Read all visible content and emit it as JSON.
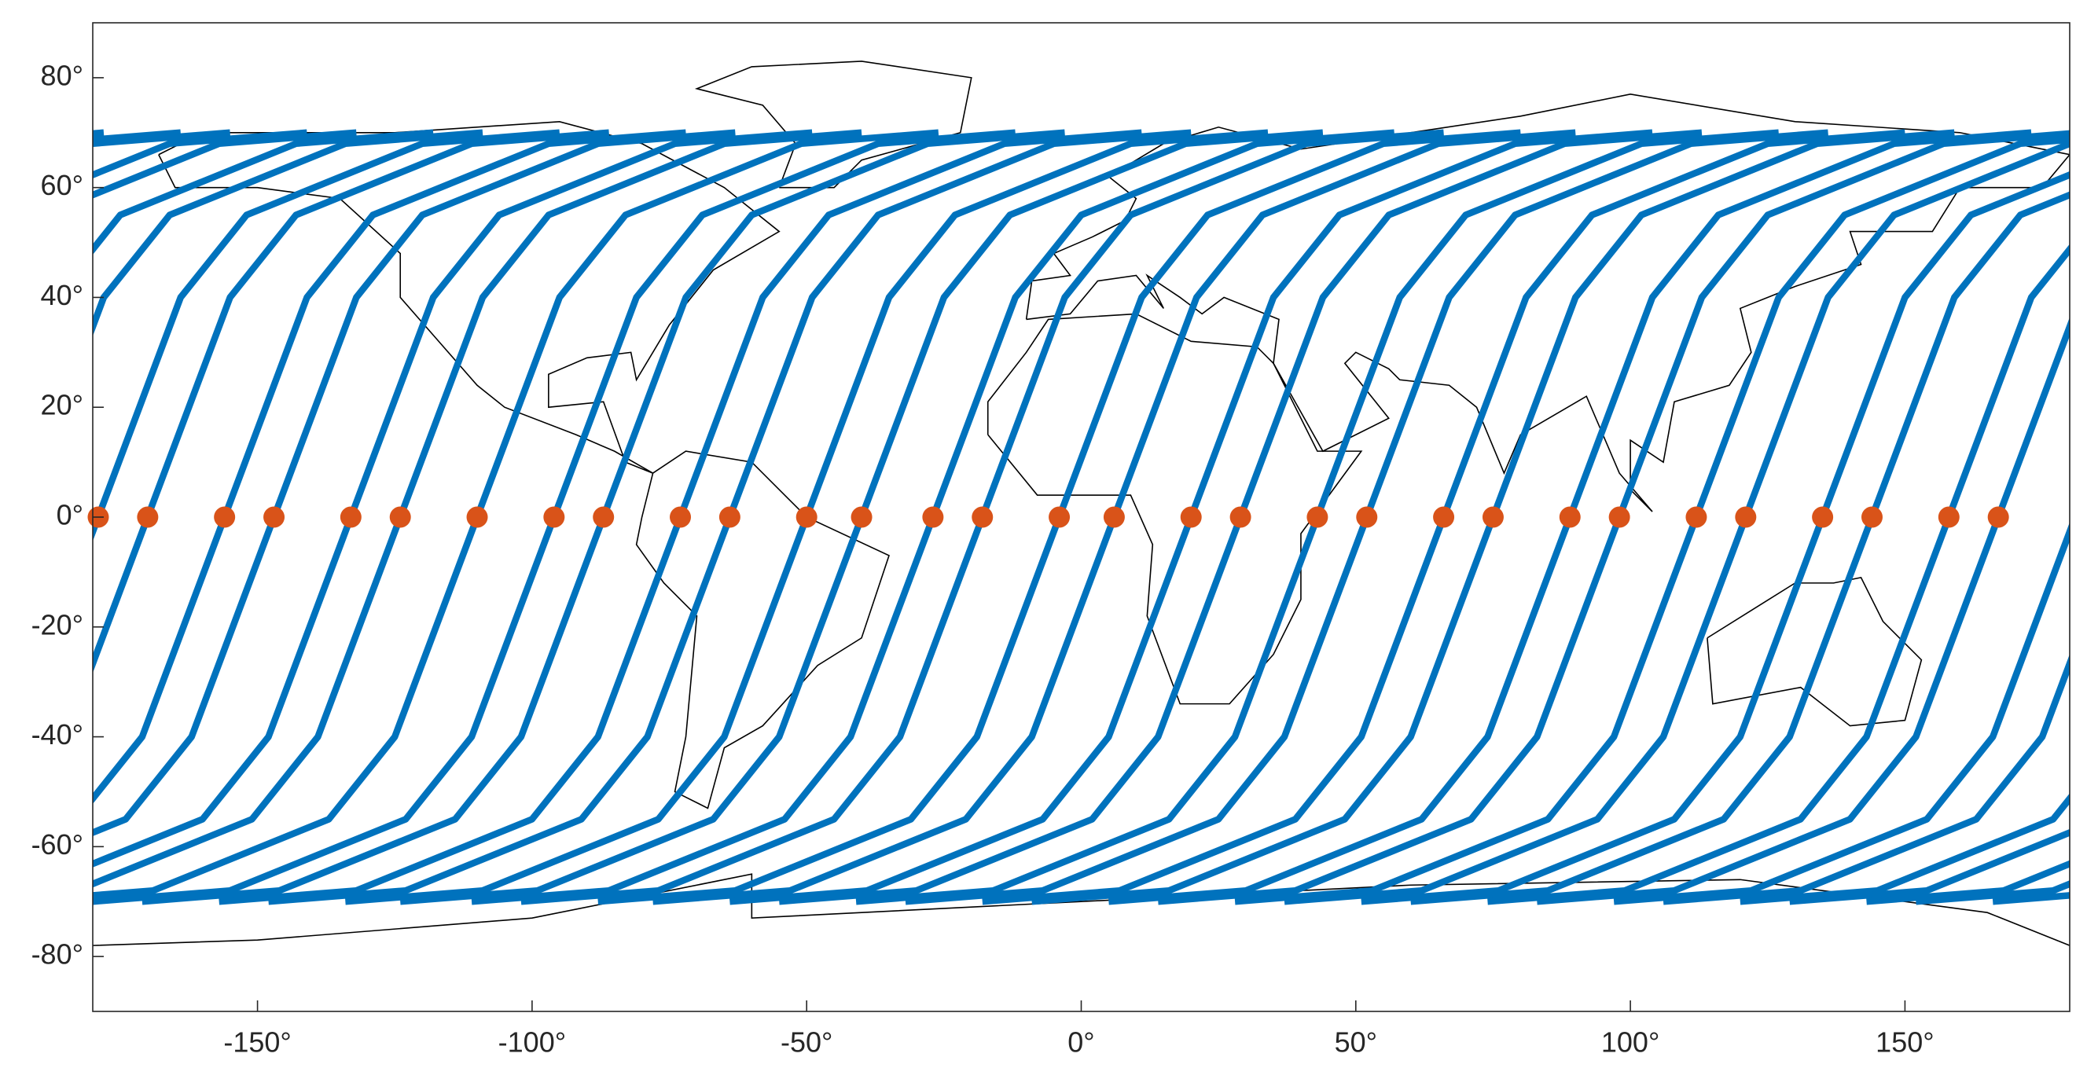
{
  "chart_data": {
    "type": "map",
    "xlim": [
      -180,
      180
    ],
    "ylim": [
      -90,
      90
    ],
    "xticks": [
      {
        "value": -150,
        "label": "-150°"
      },
      {
        "value": -100,
        "label": "-100°"
      },
      {
        "value": -50,
        "label": "-50°"
      },
      {
        "value": 0,
        "label": "0°"
      },
      {
        "value": 50,
        "label": "50°"
      },
      {
        "value": 100,
        "label": "100°"
      },
      {
        "value": 150,
        "label": "150°"
      }
    ],
    "yticks": [
      {
        "value": -80,
        "label": "-80°"
      },
      {
        "value": -60,
        "label": "-60°"
      },
      {
        "value": -40,
        "label": "-40°"
      },
      {
        "value": -20,
        "label": "-20°"
      },
      {
        "value": 0,
        "label": "0°"
      },
      {
        "value": 20,
        "label": "20°"
      },
      {
        "value": 40,
        "label": "40°"
      },
      {
        "value": 60,
        "label": "60°"
      },
      {
        "value": 80,
        "label": "80°"
      }
    ],
    "tracks": {
      "color": "#0072bd",
      "lat": [
        -70,
        -68,
        -55,
        -40,
        0,
        40,
        55,
        68,
        70
      ],
      "series": [
        {
          "lon": [
            97,
            122,
            154,
            166,
            -179,
            -164,
            -152,
            -120,
            -95
          ]
        },
        {
          "lon": [
            106,
            131,
            163,
            175,
            -170,
            -155,
            -143,
            -111,
            -86
          ]
        },
        {
          "lon": [
            120,
            145,
            177,
            -171,
            -156,
            -141,
            -129,
            -97,
            -72
          ]
        },
        {
          "lon": [
            129,
            154,
            -174,
            -162,
            -147,
            -132,
            -120,
            -88,
            -63
          ]
        },
        {
          "lon": [
            143,
            168,
            -160,
            -148,
            -133,
            -118,
            -106,
            -74,
            -49
          ]
        },
        {
          "lon": [
            152,
            177,
            -151,
            -139,
            -124,
            -109,
            -97,
            -65,
            -40
          ]
        },
        {
          "lon": [
            166,
            -169,
            -137,
            -125,
            -110,
            -95,
            -83,
            -51,
            -26
          ]
        },
        {
          "lon": [
            -180,
            -155,
            -123,
            -111,
            -96,
            -81,
            -69,
            -37,
            -12
          ]
        },
        {
          "lon": [
            -171,
            -146,
            -114,
            -102,
            -87,
            -72,
            -60,
            -28,
            -3
          ]
        },
        {
          "lon": [
            -157,
            -132,
            -100,
            -88,
            -73,
            -58,
            -46,
            -14,
            11
          ]
        },
        {
          "lon": [
            -148,
            -123,
            -91,
            -79,
            -64,
            -49,
            -37,
            -5,
            20
          ]
        },
        {
          "lon": [
            -134,
            -109,
            -77,
            -65,
            -50,
            -35,
            -23,
            9,
            34
          ]
        },
        {
          "lon": [
            -124,
            -99,
            -67,
            -55,
            -40,
            -25,
            -13,
            19,
            44
          ]
        },
        {
          "lon": [
            -111,
            -86,
            -54,
            -42,
            -27,
            -12,
            0,
            32,
            57
          ]
        },
        {
          "lon": [
            -102,
            -77,
            -45,
            -33,
            -18,
            -3,
            9,
            41,
            66
          ]
        },
        {
          "lon": [
            -88,
            -63,
            -31,
            -19,
            -4,
            11,
            23,
            55,
            80
          ]
        },
        {
          "lon": [
            -78,
            -53,
            -21,
            -9,
            6,
            21,
            33,
            65,
            90
          ]
        },
        {
          "lon": [
            -64,
            -39,
            -7,
            5,
            20,
            35,
            47,
            79,
            104
          ]
        },
        {
          "lon": [
            -55,
            -30,
            2,
            14,
            29,
            44,
            56,
            88,
            113
          ]
        },
        {
          "lon": [
            -41,
            -16,
            16,
            28,
            43,
            58,
            70,
            102,
            127
          ]
        },
        {
          "lon": [
            -32,
            -7,
            25,
            37,
            52,
            67,
            79,
            111,
            136
          ]
        },
        {
          "lon": [
            -18,
            7,
            39,
            51,
            66,
            81,
            93,
            125,
            150
          ]
        },
        {
          "lon": [
            -9,
            16,
            48,
            60,
            75,
            90,
            102,
            134,
            159
          ]
        },
        {
          "lon": [
            5,
            30,
            62,
            74,
            89,
            104,
            116,
            148,
            173
          ]
        },
        {
          "lon": [
            14,
            39,
            71,
            83,
            98,
            113,
            125,
            157,
            -178
          ]
        },
        {
          "lon": [
            28,
            53,
            85,
            97,
            112,
            127,
            139,
            171,
            -164
          ]
        },
        {
          "lon": [
            37,
            62,
            94,
            106,
            121,
            136,
            148,
            180,
            -155
          ]
        },
        {
          "lon": [
            51,
            76,
            108,
            120,
            135,
            150,
            162,
            -166,
            -141
          ]
        },
        {
          "lon": [
            60,
            85,
            117,
            129,
            144,
            159,
            171,
            -157,
            -132
          ]
        },
        {
          "lon": [
            74,
            99,
            131,
            143,
            158,
            173,
            -175,
            -143,
            -118
          ]
        },
        {
          "lon": [
            83,
            108,
            140,
            152,
            167,
            -178,
            -166,
            -134,
            -109
          ]
        }
      ]
    },
    "points": {
      "color": "#d95319",
      "x": [
        -179,
        -170,
        -156,
        -147,
        -133,
        -124,
        -110,
        -96,
        -87,
        -73,
        -64,
        -50,
        -40,
        -27,
        -18,
        -4,
        6,
        20,
        29,
        43,
        52,
        66,
        75,
        89,
        98,
        112,
        121,
        135,
        144,
        158,
        167
      ],
      "y": [
        0,
        0,
        0,
        0,
        0,
        0,
        0,
        0,
        0,
        0,
        0,
        0,
        0,
        0,
        0,
        0,
        0,
        0,
        0,
        0,
        0,
        0,
        0,
        0,
        0,
        0,
        0,
        0,
        0,
        0,
        0
      ]
    }
  }
}
